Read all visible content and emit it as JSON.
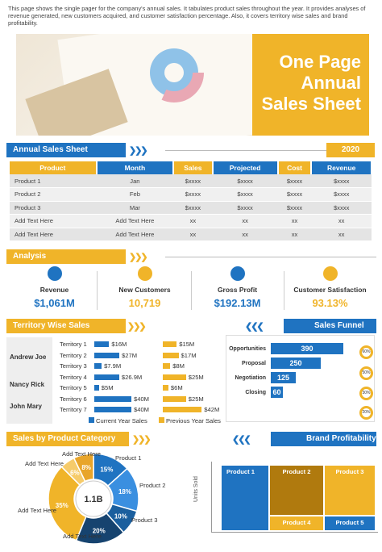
{
  "intro": "This page shows the single pager for the company's annual sales. It tabulates product sales throughout the year. It provides analyses of revenue generated, new customers acquired, and customer satisfaction percentage. Also, it covers territory wise sales and brand profitability.",
  "hero": {
    "line1": "One Page",
    "line2": "Annual",
    "line3": "Sales Sheet"
  },
  "sales_sheet": {
    "title": "Annual Sales Sheet",
    "year": "2020",
    "headers": [
      "Product",
      "Month",
      "Sales",
      "Projected",
      "Cost",
      "Revenue"
    ],
    "rows": [
      [
        "Product  1",
        "Jan",
        "$xxxx",
        "$xxxx",
        "$xxxx",
        "$xxxx"
      ],
      [
        "Product  2",
        "Feb",
        "$xxxx",
        "$xxxx",
        "$xxxx",
        "$xxxx"
      ],
      [
        "Product  3",
        "Mar",
        "$xxxx",
        "$xxxx",
        "$xxxx",
        "$xxxx"
      ],
      [
        "Add Text Here",
        "Add Text Here",
        "xx",
        "xx",
        "xx",
        "xx"
      ],
      [
        "Add Text Here",
        "Add Text Here",
        "xx",
        "xx",
        "xx",
        "xx"
      ]
    ]
  },
  "analysis": {
    "title": "Analysis",
    "kpis": [
      {
        "label": "Revenue",
        "value": "$1,061M",
        "color": "#1f73c1"
      },
      {
        "label": "New Customers",
        "value": "10,719",
        "color": "#f0b429"
      },
      {
        "label": "Gross Profit",
        "value": "$192.13M",
        "color": "#1f73c1"
      },
      {
        "label": "Customer Satisfaction",
        "value": "93.13%",
        "color": "#f0b429"
      }
    ]
  },
  "territory": {
    "title": "Territory Wise Sales",
    "names": [
      "Andrew Joe",
      "Nancy Rick",
      "John Mary"
    ],
    "legend_current": "Current Year Sales",
    "legend_previous": "Previous Year Sales"
  },
  "funnel": {
    "title": "Sales Funnel",
    "stages": [
      {
        "label": "Opportunities",
        "value": "390",
        "pct": "60%"
      },
      {
        "label": "Proposal",
        "value": "250",
        "pct": "50%"
      },
      {
        "label": "Negotiation",
        "value": "125",
        "pct": "30%"
      },
      {
        "label": "Closing",
        "value": "60",
        "pct": "20%"
      }
    ]
  },
  "category": {
    "title": "Sales by Product Category",
    "center": "1.1B",
    "labels": {
      "p1": "Product 1",
      "p2": "Product 2",
      "p3": "Product 3",
      "a1": "Add Text Here",
      "a2": "Add Text Here",
      "a3": "Add Text Here",
      "a4": "Add Text Here"
    }
  },
  "brand": {
    "title": "Brand Profitability",
    "ylabel": "Units Sold",
    "tiles": [
      "Product 1",
      "Product 2",
      "Product 3",
      "Product 4",
      "Product 5"
    ]
  },
  "chart_data": [
    {
      "type": "bar",
      "title": "Territory Wise Sales",
      "categories": [
        "Territory 1",
        "Territory 2",
        "Territory 3",
        "Territory 4",
        "Territory 5",
        "Territory 6",
        "Territory 7"
      ],
      "series": [
        {
          "name": "Current Year Sales",
          "values": [
            16,
            27,
            7.9,
            26.9,
            5,
            40,
            40
          ],
          "labels": [
            "$16M",
            "$27M",
            "$7.9M",
            "$26.9M",
            "$5M",
            "$40M",
            "$40M"
          ],
          "color": "#1f73c1"
        },
        {
          "name": "Previous Year Sales",
          "values": [
            15,
            17,
            8,
            25,
            6,
            25,
            42
          ],
          "labels": [
            "$15M",
            "$17M",
            "$8M",
            "$25M",
            "$6M",
            "$25M",
            "$42M"
          ],
          "color": "#f0b429"
        }
      ]
    },
    {
      "type": "pie",
      "title": "Sales by Product Category",
      "slices": [
        {
          "label": "15%",
          "value": 15,
          "color": "#1f73c1"
        },
        {
          "label": "18%",
          "value": 18,
          "color": "#3a8fe0"
        },
        {
          "label": "10%",
          "value": 10,
          "color": "#1b5f9e"
        },
        {
          "label": "20%",
          "value": 20,
          "color": "#16436f"
        },
        {
          "label": "35%",
          "value": 35,
          "color": "#f0b429"
        },
        {
          "label": "6%",
          "value": 6,
          "color": "#f6cb6a"
        },
        {
          "label": "8%",
          "value": 8,
          "color": "#e8a52a"
        }
      ]
    }
  ]
}
